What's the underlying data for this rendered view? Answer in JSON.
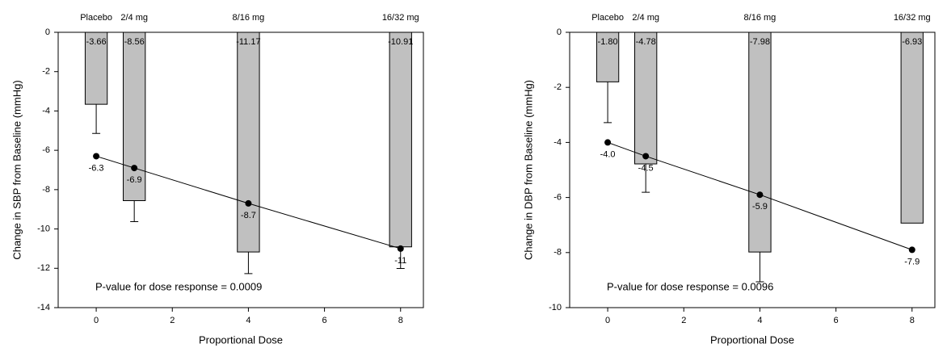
{
  "chart_data": [
    {
      "type": "bar",
      "categories": [
        "Placebo",
        "2/4 mg",
        "8/16 mg",
        "16/32 mg"
      ],
      "x_label": "Proportional Dose",
      "y_label": "Change in SBP from Baseline (mmHg)",
      "annotation": "P-value for dose response = 0.0009",
      "xlim": [
        -1,
        8.6
      ],
      "xticks": [
        0,
        2,
        4,
        6,
        8
      ],
      "ylim": [
        -14,
        0
      ],
      "yticks": [
        0,
        -2,
        -4,
        -6,
        -8,
        -10,
        -12,
        -14
      ],
      "series": [
        {
          "type": "bar",
          "color": "#c0c0c0",
          "x": [
            0,
            1,
            4,
            8
          ],
          "values": [
            -3.66,
            -8.56,
            -11.17,
            -10.91
          ],
          "errors": [
            1.48,
            1.07,
            1.1,
            1.1
          ],
          "value_labels": [
            "-3.66",
            "-8.56",
            "-11.17",
            "-10.91"
          ]
        },
        {
          "type": "line",
          "color": "#000000",
          "x": [
            0,
            1,
            4,
            8
          ],
          "values": [
            -6.3,
            -6.9,
            -8.7,
            -11
          ],
          "value_labels": [
            "-6.3",
            "-6.9",
            "-8.7",
            "-11"
          ]
        }
      ]
    },
    {
      "type": "bar",
      "categories": [
        "Placebo",
        "2/4 mg",
        "8/16 mg",
        "16/32 mg"
      ],
      "x_label": "Proportional Dose",
      "y_label": "Change in DBP from Baseline (mmHg)",
      "annotation": "P-value for dose response = 0.0096",
      "xlim": [
        -1,
        8.6
      ],
      "xticks": [
        0,
        2,
        4,
        6,
        8
      ],
      "ylim": [
        -10,
        0
      ],
      "yticks": [
        0,
        -2,
        -4,
        -6,
        -8,
        -10
      ],
      "series": [
        {
          "type": "bar",
          "color": "#c0c0c0",
          "x": [
            0,
            1,
            4,
            8
          ],
          "values": [
            -1.8,
            -4.78,
            -7.98,
            -6.93
          ],
          "errors": [
            1.48,
            1.03,
            1.08,
            null
          ],
          "value_labels": [
            "-1.80",
            "-4.78",
            "-7.98",
            "-6.93"
          ]
        },
        {
          "type": "line",
          "color": "#000000",
          "x": [
            0,
            1,
            4,
            8
          ],
          "values": [
            -4,
            -4.5,
            -5.9,
            -7.9
          ],
          "value_labels": [
            "-4.0",
            "-4.5",
            "-5.9",
            "-7.9"
          ]
        }
      ]
    }
  ]
}
